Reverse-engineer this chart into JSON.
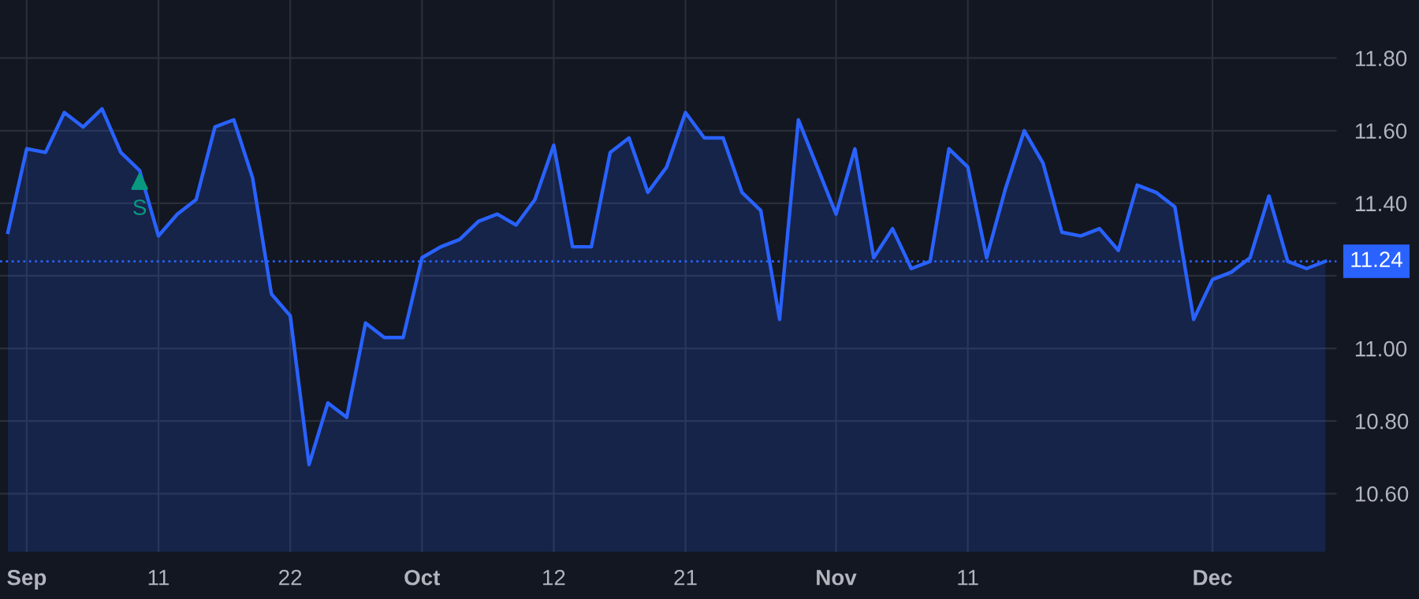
{
  "chart_data": {
    "type": "area",
    "categories": [
      null,
      "Sep",
      null,
      null,
      null,
      null,
      null,
      null,
      "11",
      null,
      null,
      null,
      null,
      null,
      null,
      "22",
      null,
      null,
      null,
      null,
      null,
      null,
      "Oct",
      null,
      null,
      null,
      null,
      null,
      null,
      "12",
      null,
      null,
      null,
      null,
      null,
      null,
      "21",
      null,
      null,
      null,
      null,
      null,
      null,
      null,
      "Nov",
      null,
      null,
      null,
      null,
      null,
      null,
      "11",
      null,
      null,
      null,
      null,
      null,
      null,
      null,
      null,
      null,
      null,
      null,
      null,
      "Dec",
      null,
      null,
      null,
      null,
      null,
      null
    ],
    "series": [
      {
        "color": "#2962ff",
        "values": [
          11.32,
          11.55,
          11.54,
          11.65,
          11.61,
          11.66,
          11.54,
          11.49,
          11.31,
          11.37,
          11.41,
          11.61,
          11.63,
          11.47,
          11.15,
          11.09,
          10.68,
          10.85,
          10.81,
          11.07,
          11.03,
          11.03,
          11.25,
          11.28,
          11.3,
          11.35,
          11.37,
          11.34,
          11.41,
          11.56,
          11.28,
          11.28,
          11.54,
          11.58,
          11.43,
          11.5,
          11.65,
          11.58,
          11.58,
          11.43,
          11.38,
          11.08,
          11.63,
          11.5,
          11.37,
          11.55,
          11.25,
          11.33,
          11.22,
          11.24,
          11.55,
          11.5,
          11.25,
          11.44,
          11.6,
          11.51,
          11.32,
          11.31,
          11.33,
          11.27,
          11.45,
          11.43,
          11.39,
          11.08,
          11.19,
          11.21,
          11.25,
          11.42,
          11.24,
          11.22,
          11.24
        ]
      },
      {
        "type": "scatter",
        "name": "S",
        "color": "#089981",
        "marker": "triangle",
        "values": [
          null,
          null,
          null,
          null,
          null,
          null,
          null,
          11.46,
          null,
          null,
          null,
          null,
          null,
          null,
          null,
          null,
          null,
          null,
          null,
          null,
          null,
          null,
          null,
          null,
          null,
          null,
          null,
          null,
          null,
          null,
          null,
          null,
          null,
          null,
          null,
          null,
          null,
          null,
          null,
          null,
          null,
          null,
          null,
          null,
          null,
          null,
          null,
          null,
          null,
          null,
          null,
          null,
          null,
          null,
          null,
          null,
          null,
          null,
          null,
          null,
          null,
          null,
          null,
          null,
          null,
          null,
          null,
          null,
          null,
          null,
          null
        ]
      }
    ],
    "ylim": [
      10.44,
      11.96
    ],
    "yticks": [
      {
        "value": 10.6,
        "label": "10.60"
      },
      {
        "value": 10.8,
        "label": "10.80"
      },
      {
        "value": 11.0,
        "label": "11.00"
      },
      {
        "value": 11.2,
        "label": null
      },
      {
        "value": 11.4,
        "label": "11.40"
      },
      {
        "value": 11.6,
        "label": "11.60"
      },
      {
        "value": 11.8,
        "label": "11.80"
      }
    ],
    "ref_lines": [
      {
        "axis": "y",
        "value": 11.24,
        "label": "11.24",
        "color": "#2962ff",
        "line_style": "dotted"
      }
    ],
    "grid": true
  }
}
